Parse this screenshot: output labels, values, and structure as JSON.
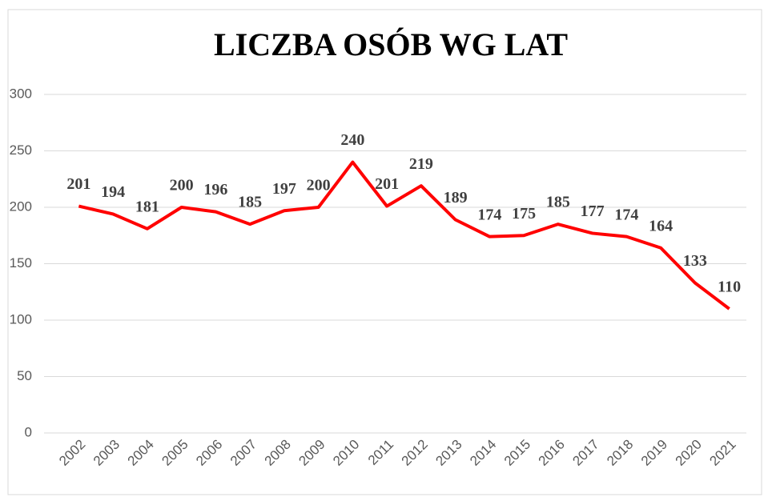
{
  "chart_data": {
    "type": "line",
    "title": "LICZBA OSÓB WG LAT",
    "categories": [
      "2002",
      "2003",
      "2004",
      "2005",
      "2006",
      "2007",
      "2008",
      "2009",
      "2010",
      "2011",
      "2012",
      "2013",
      "2014",
      "2015",
      "2016",
      "2017",
      "2018",
      "2019",
      "2020",
      "2021"
    ],
    "values": [
      201,
      194,
      181,
      200,
      196,
      185,
      197,
      200,
      240,
      201,
      219,
      189,
      174,
      175,
      185,
      177,
      174,
      164,
      133,
      110
    ],
    "color": "#ff0000",
    "ylim": [
      0,
      300
    ],
    "yticks": [
      0,
      50,
      100,
      150,
      200,
      250,
      300
    ],
    "grid": true
  }
}
